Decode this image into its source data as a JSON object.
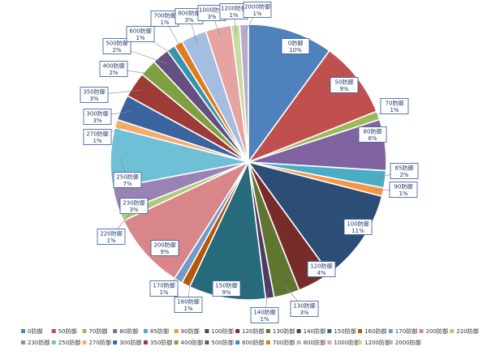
{
  "chart_data": {
    "type": "pie",
    "title": "",
    "legend_position": "bottom",
    "slices": [
      {
        "label": "0防御",
        "percent_label": "10%",
        "value": 10,
        "color": "#4f81bd"
      },
      {
        "label": "50防御",
        "percent_label": "9%",
        "value": 9,
        "color": "#c0504d"
      },
      {
        "label": "70防御",
        "percent_label": "1%",
        "value": 1,
        "color": "#9bbb59"
      },
      {
        "label": "80防御",
        "percent_label": "6%",
        "value": 6,
        "color": "#8064a2"
      },
      {
        "label": "85防御",
        "percent_label": "2%",
        "value": 2,
        "color": "#4bacc6"
      },
      {
        "label": "90防御",
        "percent_label": "1%",
        "value": 1,
        "color": "#f79646"
      },
      {
        "label": "100防御",
        "percent_label": "11%",
        "value": 11,
        "color": "#2c4d75"
      },
      {
        "label": "120防御",
        "percent_label": "4%",
        "value": 4,
        "color": "#772c2a"
      },
      {
        "label": "130防御",
        "percent_label": "3%",
        "value": 3,
        "color": "#5f7530"
      },
      {
        "label": "140防御",
        "percent_label": "1%",
        "value": 1,
        "color": "#4d3b62"
      },
      {
        "label": "150防御",
        "percent_label": "9%",
        "value": 9,
        "color": "#276a7c"
      },
      {
        "label": "160防御",
        "percent_label": "1%",
        "value": 1,
        "color": "#b65708"
      },
      {
        "label": "170防御",
        "percent_label": "1%",
        "value": 1,
        "color": "#729aca"
      },
      {
        "label": "200防御",
        "percent_label": "9%",
        "value": 9,
        "color": "#d9868a"
      },
      {
        "label": "220防御",
        "percent_label": "1%",
        "value": 1,
        "color": "#afc97a"
      },
      {
        "label": "230防御",
        "percent_label": "3%",
        "value": 3,
        "color": "#9983b5"
      },
      {
        "label": "250防御",
        "percent_label": "7%",
        "value": 7,
        "color": "#6fc0d6"
      },
      {
        "label": "270防御",
        "percent_label": "1%",
        "value": 1,
        "color": "#f9ab6b"
      },
      {
        "label": "300防御",
        "percent_label": "3%",
        "value": 3,
        "color": "#3a64a0"
      },
      {
        "label": "350防御",
        "percent_label": "3%",
        "value": 3,
        "color": "#9e3b37"
      },
      {
        "label": "400防御",
        "percent_label": "2%",
        "value": 2,
        "color": "#7fa040"
      },
      {
        "label": "500防御",
        "percent_label": "2%",
        "value": 2,
        "color": "#654f82"
      },
      {
        "label": "600防御",
        "percent_label": "1%",
        "value": 1,
        "color": "#3493ae"
      },
      {
        "label": "700防御",
        "percent_label": "1%",
        "value": 1,
        "color": "#e07a1f"
      },
      {
        "label": "800防御",
        "percent_label": "3%",
        "value": 3,
        "color": "#a4bde0"
      },
      {
        "label": "1000防御",
        "percent_label": "3%",
        "value": 3,
        "color": "#e5a3a1"
      },
      {
        "label": "1200防御",
        "percent_label": "1%",
        "value": 1,
        "color": "#c6dca0"
      },
      {
        "label": "2000防御",
        "percent_label": "1%",
        "value": 1,
        "color": "#b9a8cf"
      }
    ]
  }
}
